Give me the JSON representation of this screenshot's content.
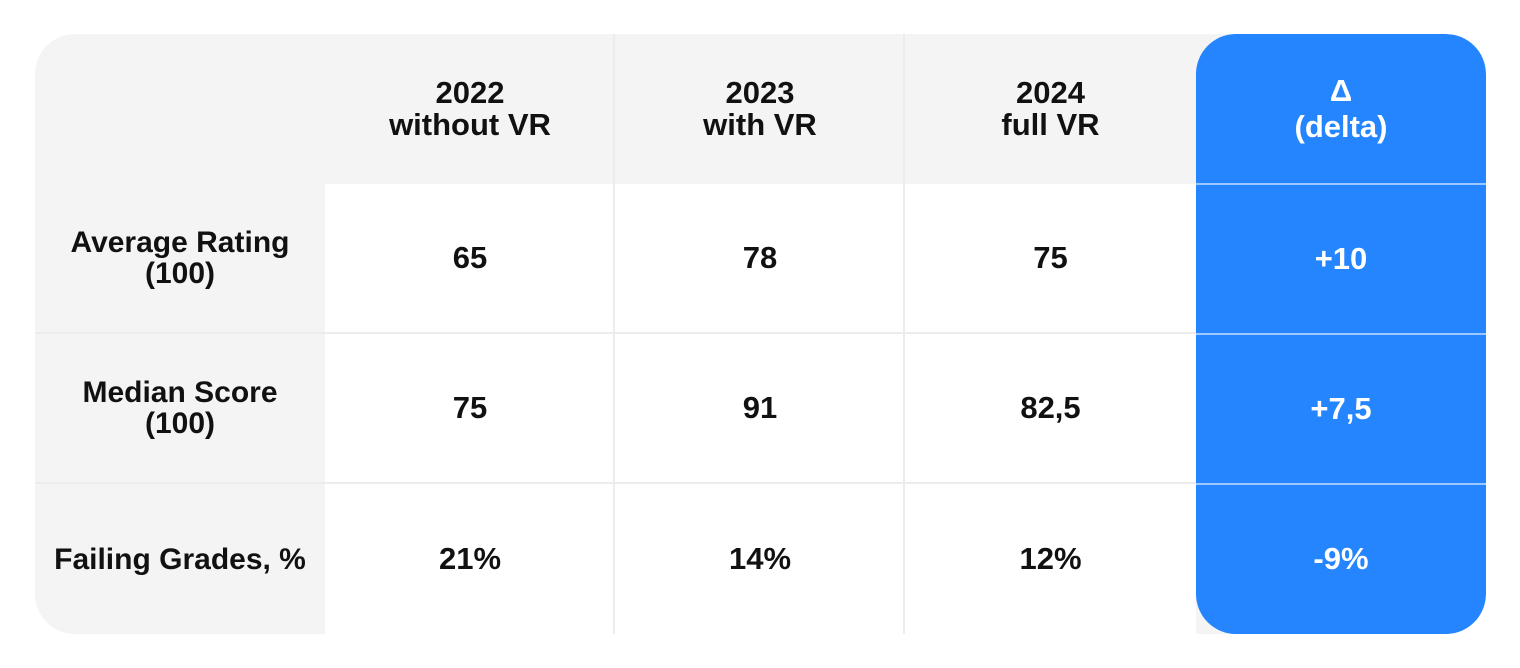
{
  "colors": {
    "panel": "#f4f4f4",
    "cell": "#ffffff",
    "delta_accent": "#2485ff",
    "text": "#111111",
    "delta_text": "#ffffff"
  },
  "chart_data": {
    "type": "table",
    "columns": [
      {
        "year": "2022",
        "label": "without VR"
      },
      {
        "year": "2023",
        "label": "with VR"
      },
      {
        "year": "2024",
        "label": "full VR"
      }
    ],
    "delta_header": {
      "symbol": "Δ",
      "label": "(delta)"
    },
    "rows": [
      {
        "label_line1": "Average Rating",
        "label_line2": "(100)",
        "values": [
          "65",
          "78",
          "75"
        ],
        "delta": "+10"
      },
      {
        "label_line1": "Median Score",
        "label_line2": "(100)",
        "values": [
          "75",
          "91",
          "82,5"
        ],
        "delta": "+7,5"
      },
      {
        "label_line1": "Failing Grades, %",
        "label_line2": "",
        "values": [
          "21%",
          "14%",
          "12%"
        ],
        "delta": "-9%"
      }
    ]
  }
}
